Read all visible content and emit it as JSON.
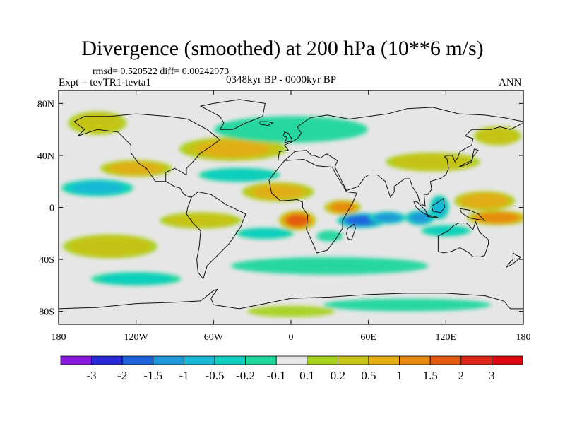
{
  "title": "Divergence (smoothed) at 200 hPa (10**6 m/s)",
  "stats": "rmsd= 0.520522 diff= 0.00242973",
  "experiment": "Expt = tevTR1-tevta1",
  "period": "0348kyr BP - 0000kyr BP",
  "season": "ANN",
  "chart_data": {
    "type": "heatmap",
    "title": "Divergence (smoothed) at 200 hPa (10**6 m/s)",
    "xlabel": "",
    "ylabel": "",
    "x_range": [
      -180,
      180
    ],
    "y_range": [
      -90,
      90
    ],
    "x_ticks": [
      {
        "value": -180,
        "label": "180"
      },
      {
        "value": -120,
        "label": "120W"
      },
      {
        "value": -60,
        "label": "60W"
      },
      {
        "value": 0,
        "label": "0"
      },
      {
        "value": 60,
        "label": "60E"
      },
      {
        "value": 120,
        "label": "120E"
      },
      {
        "value": 180,
        "label": "180"
      }
    ],
    "y_ticks": [
      {
        "value": 80,
        "label": "80N"
      },
      {
        "value": 40,
        "label": "40N"
      },
      {
        "value": 0,
        "label": "0"
      },
      {
        "value": -40,
        "label": "40S"
      },
      {
        "value": -80,
        "label": "80S"
      }
    ],
    "levels": [
      "-3",
      "-2",
      "-1.5",
      "-1",
      "-0.5",
      "-0.2",
      "-0.1",
      "0.1",
      "0.2",
      "0.5",
      "1",
      "1.5",
      "2",
      "3"
    ],
    "colors": [
      "#8b1ae0",
      "#2a2ad8",
      "#1f63db",
      "#1f97d8",
      "#19b7d6",
      "#10cfc0",
      "#1ed79a",
      "#e6e6e6",
      "#a6d21e",
      "#c7c419",
      "#e2ae12",
      "#e68a12",
      "#e25a12",
      "#e0281a",
      "#e00a14"
    ],
    "features": [
      {
        "lon": 55,
        "lat": -10,
        "lon_r": 20,
        "lat_r": 6,
        "value": -2.2
      },
      {
        "lon": 75,
        "lat": -8,
        "lon_r": 15,
        "lat_r": 5,
        "value": -1.6
      },
      {
        "lon": 100,
        "lat": -8,
        "lon_r": 12,
        "lat_r": 6,
        "value": -1.5
      },
      {
        "lon": 115,
        "lat": 0,
        "lon_r": 8,
        "lat_r": 10,
        "value": -1.0
      },
      {
        "lon": 120,
        "lat": -18,
        "lon_r": 22,
        "lat_r": 5,
        "value": -0.4
      },
      {
        "lon": 160,
        "lat": -8,
        "lon_r": 25,
        "lat_r": 6,
        "value": 1.6
      },
      {
        "lon": 150,
        "lat": 5,
        "lon_r": 25,
        "lat_r": 8,
        "value": 1.2
      },
      {
        "lon": 110,
        "lat": 35,
        "lon_r": 40,
        "lat_r": 8,
        "value": 0.7
      },
      {
        "lon": 40,
        "lat": 0,
        "lon_r": 15,
        "lat_r": 6,
        "value": 1.4
      },
      {
        "lon": 5,
        "lat": -10,
        "lon_r": 15,
        "lat_r": 8,
        "value": 1.8
      },
      {
        "lon": 30,
        "lat": -22,
        "lon_r": 12,
        "lat_r": 5,
        "value": -0.3
      },
      {
        "lon": -10,
        "lat": 12,
        "lon_r": 30,
        "lat_r": 8,
        "value": 0.9
      },
      {
        "lon": -20,
        "lat": -20,
        "lon_r": 25,
        "lat_r": 5,
        "value": -0.5
      },
      {
        "lon": -70,
        "lat": -10,
        "lon_r": 35,
        "lat_r": 7,
        "value": 0.6
      },
      {
        "lon": -40,
        "lat": 25,
        "lon_r": 35,
        "lat_r": 6,
        "value": -0.6
      },
      {
        "lon": -45,
        "lat": 45,
        "lon_r": 45,
        "lat_r": 10,
        "value": 0.8
      },
      {
        "lon": -150,
        "lat": 15,
        "lon_r": 30,
        "lat_r": 7,
        "value": -0.9
      },
      {
        "lon": -120,
        "lat": 30,
        "lon_r": 30,
        "lat_r": 7,
        "value": 0.9
      },
      {
        "lon": -140,
        "lat": -30,
        "lon_r": 40,
        "lat_r": 10,
        "value": 0.7
      },
      {
        "lon": 0,
        "lat": 60,
        "lon_r": 70,
        "lat_r": 12,
        "value": -0.3
      },
      {
        "lon": -150,
        "lat": 65,
        "lon_r": 25,
        "lat_r": 10,
        "value": 0.6
      },
      {
        "lon": 160,
        "lat": 55,
        "lon_r": 20,
        "lat_r": 8,
        "value": 0.7
      },
      {
        "lon": 30,
        "lat": -45,
        "lon_r": 90,
        "lat_r": 8,
        "value": -0.3
      },
      {
        "lon": -120,
        "lat": -55,
        "lon_r": 40,
        "lat_r": 6,
        "value": -0.4
      },
      {
        "lon": 90,
        "lat": -75,
        "lon_r": 80,
        "lat_r": 6,
        "value": -0.2
      },
      {
        "lon": 0,
        "lat": -80,
        "lon_r": 40,
        "lat_r": 5,
        "value": 0.3
      }
    ]
  }
}
